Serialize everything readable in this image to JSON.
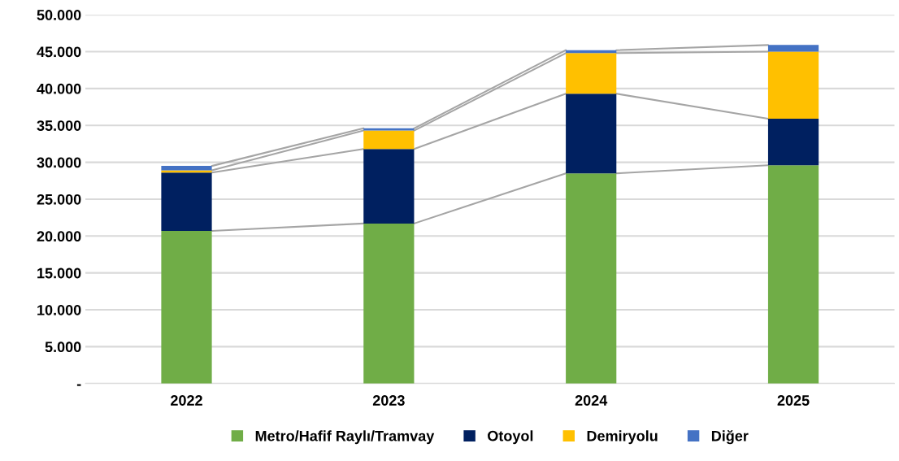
{
  "chart_data": {
    "type": "bar",
    "stacked": true,
    "categories": [
      "2022",
      "2023",
      "2024",
      "2025"
    ],
    "series": [
      {
        "name": "Metro/Hafif Raylı/Tramvay",
        "color": "#70ad47",
        "values": [
          20700,
          21700,
          28500,
          29600
        ]
      },
      {
        "name": "Otoyol",
        "color": "#002060",
        "values": [
          7900,
          10100,
          10800,
          6300
        ]
      },
      {
        "name": "Demiryolu",
        "color": "#ffc000",
        "values": [
          300,
          2500,
          5500,
          9100
        ]
      },
      {
        "name": "Diğer",
        "color": "#4472c4",
        "values": [
          600,
          300,
          400,
          900
        ]
      }
    ],
    "ylim": [
      0,
      50000
    ],
    "yticks": [
      {
        "value": 0,
        "label": "-"
      },
      {
        "value": 5000,
        "label": "5.000"
      },
      {
        "value": 10000,
        "label": "10.000"
      },
      {
        "value": 15000,
        "label": "15.000"
      },
      {
        "value": 20000,
        "label": "20.000"
      },
      {
        "value": 25000,
        "label": "25.000"
      },
      {
        "value": 30000,
        "label": "30.000"
      },
      {
        "value": 35000,
        "label": "35.000"
      },
      {
        "value": 40000,
        "label": "40.000"
      },
      {
        "value": 45000,
        "label": "45.000"
      },
      {
        "value": 50000,
        "label": "50.000"
      }
    ],
    "grid": "y",
    "legend": "bottom"
  }
}
